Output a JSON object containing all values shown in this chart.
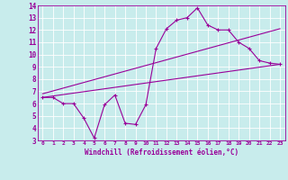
{
  "title": "",
  "xlabel": "Windchill (Refroidissement éolien,°C)",
  "ylabel": "",
  "xlim": [
    -0.5,
    23.5
  ],
  "ylim": [
    3,
    14
  ],
  "xticks": [
    0,
    1,
    2,
    3,
    4,
    5,
    6,
    7,
    8,
    9,
    10,
    11,
    12,
    13,
    14,
    15,
    16,
    17,
    18,
    19,
    20,
    21,
    22,
    23
  ],
  "yticks": [
    3,
    4,
    5,
    6,
    7,
    8,
    9,
    10,
    11,
    12,
    13,
    14
  ],
  "bg_color": "#c8ecec",
  "line_color": "#990099",
  "grid_color": "#ffffff",
  "line1_x": [
    0,
    1,
    2,
    3,
    4,
    5,
    6,
    7,
    8,
    9,
    10,
    11,
    12,
    13,
    14,
    15,
    16,
    17,
    18,
    19,
    20,
    21,
    22,
    23
  ],
  "line1_y": [
    6.5,
    6.5,
    6.0,
    6.0,
    4.8,
    3.2,
    5.9,
    6.7,
    4.4,
    4.3,
    5.9,
    10.5,
    12.1,
    12.8,
    13.0,
    13.8,
    12.4,
    12.0,
    12.0,
    11.0,
    10.5,
    9.5,
    9.3,
    9.2
  ],
  "line2_x": [
    0,
    23
  ],
  "line2_y": [
    6.5,
    9.2
  ],
  "line3_x": [
    0,
    23
  ],
  "line3_y": [
    6.8,
    12.1
  ]
}
